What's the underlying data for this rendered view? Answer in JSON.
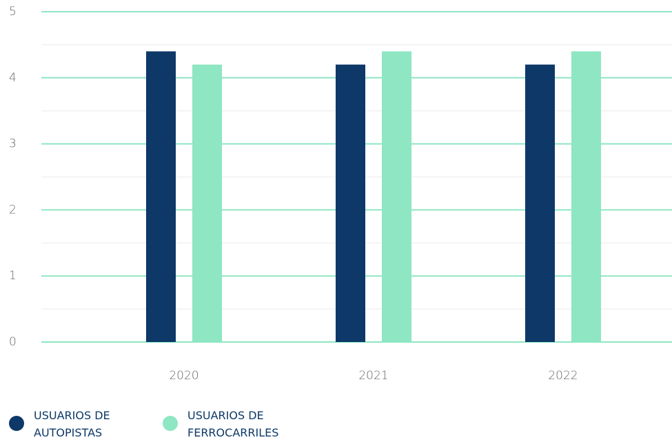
{
  "chart_data": {
    "type": "bar",
    "categories": [
      "2020",
      "2021",
      "2022"
    ],
    "series": [
      {
        "name": "USUARIOS DE AUTOPISTAS",
        "color": "#0d3868",
        "values": [
          4.4,
          4.2,
          4.2
        ]
      },
      {
        "name": "USUARIOS DE FERROCARRILES",
        "color": "#8ee6c3",
        "values": [
          4.2,
          4.4,
          4.4
        ]
      }
    ],
    "ylim": [
      0,
      5
    ],
    "yticks": [
      0,
      1,
      2,
      3,
      4,
      5
    ],
    "grid": true,
    "grid_color": "#8ee6c3",
    "legend": "bottom-left"
  }
}
